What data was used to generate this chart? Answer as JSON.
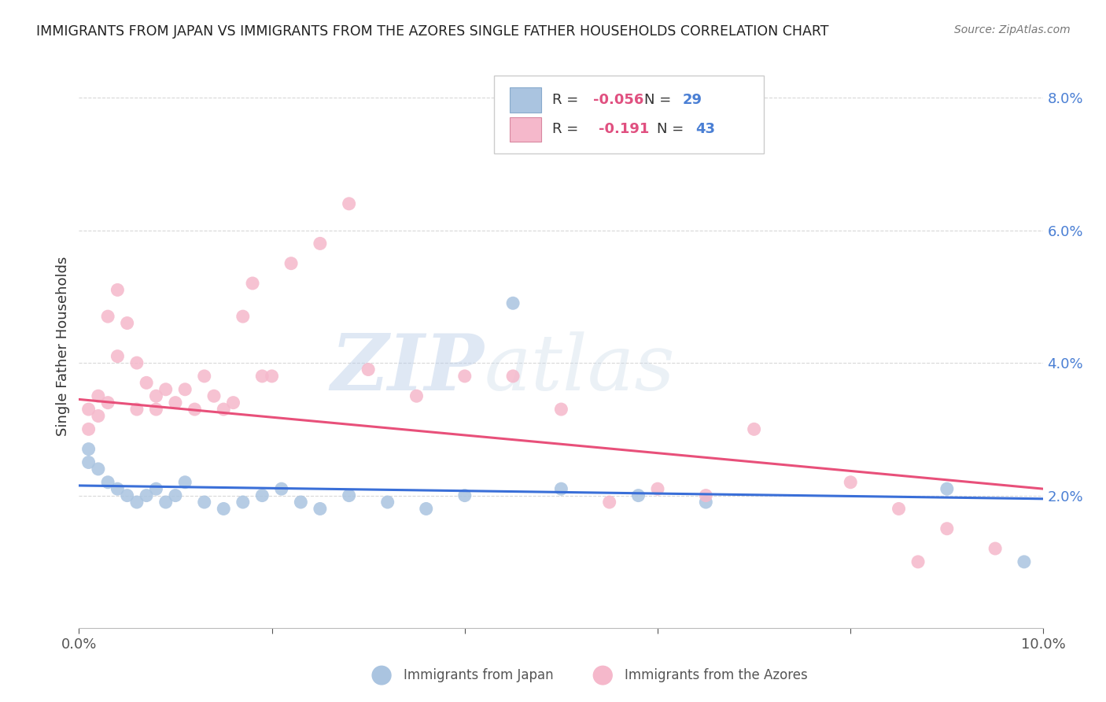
{
  "title": "IMMIGRANTS FROM JAPAN VS IMMIGRANTS FROM THE AZORES SINGLE FATHER HOUSEHOLDS CORRELATION CHART",
  "source": "Source: ZipAtlas.com",
  "ylabel": "Single Father Households",
  "xlim": [
    0.0,
    0.1
  ],
  "ylim": [
    0.0,
    0.085
  ],
  "yticks": [
    0.02,
    0.04,
    0.06,
    0.08
  ],
  "ytick_labels": [
    "2.0%",
    "4.0%",
    "6.0%",
    "8.0%"
  ],
  "xticks": [
    0.0,
    0.02,
    0.04,
    0.06,
    0.08,
    0.1
  ],
  "xtick_labels": [
    "0.0%",
    "",
    "",
    "",
    "",
    "10.0%"
  ],
  "legend_japan_r": "-0.056",
  "legend_japan_n": "29",
  "legend_azores_r": "-0.191",
  "legend_azores_n": "43",
  "japan_color": "#aac4e0",
  "azores_color": "#f5b8cb",
  "japan_line_color": "#3a6fd8",
  "azores_line_color": "#e8507a",
  "watermark_zip": "ZIP",
  "watermark_atlas": "atlas",
  "japan_x": [
    0.001,
    0.001,
    0.002,
    0.003,
    0.004,
    0.005,
    0.006,
    0.007,
    0.008,
    0.009,
    0.01,
    0.011,
    0.013,
    0.015,
    0.017,
    0.019,
    0.021,
    0.023,
    0.025,
    0.028,
    0.032,
    0.036,
    0.04,
    0.045,
    0.05,
    0.058,
    0.065,
    0.09,
    0.098
  ],
  "japan_y": [
    0.027,
    0.025,
    0.024,
    0.022,
    0.021,
    0.02,
    0.019,
    0.02,
    0.021,
    0.019,
    0.02,
    0.022,
    0.019,
    0.018,
    0.019,
    0.02,
    0.021,
    0.019,
    0.018,
    0.02,
    0.019,
    0.018,
    0.02,
    0.049,
    0.021,
    0.02,
    0.019,
    0.021,
    0.01
  ],
  "azores_x": [
    0.001,
    0.001,
    0.002,
    0.002,
    0.003,
    0.003,
    0.004,
    0.004,
    0.005,
    0.006,
    0.006,
    0.007,
    0.008,
    0.008,
    0.009,
    0.01,
    0.011,
    0.012,
    0.013,
    0.014,
    0.015,
    0.016,
    0.017,
    0.018,
    0.019,
    0.02,
    0.022,
    0.025,
    0.028,
    0.03,
    0.035,
    0.04,
    0.045,
    0.05,
    0.055,
    0.06,
    0.065,
    0.07,
    0.08,
    0.085,
    0.087,
    0.09,
    0.095
  ],
  "azores_y": [
    0.033,
    0.03,
    0.035,
    0.032,
    0.034,
    0.047,
    0.051,
    0.041,
    0.046,
    0.04,
    0.033,
    0.037,
    0.035,
    0.033,
    0.036,
    0.034,
    0.036,
    0.033,
    0.038,
    0.035,
    0.033,
    0.034,
    0.047,
    0.052,
    0.038,
    0.038,
    0.055,
    0.058,
    0.064,
    0.039,
    0.035,
    0.038,
    0.038,
    0.033,
    0.019,
    0.021,
    0.02,
    0.03,
    0.022,
    0.018,
    0.01,
    0.015,
    0.012
  ],
  "background_color": "#ffffff",
  "grid_color": "#d8d8d8"
}
